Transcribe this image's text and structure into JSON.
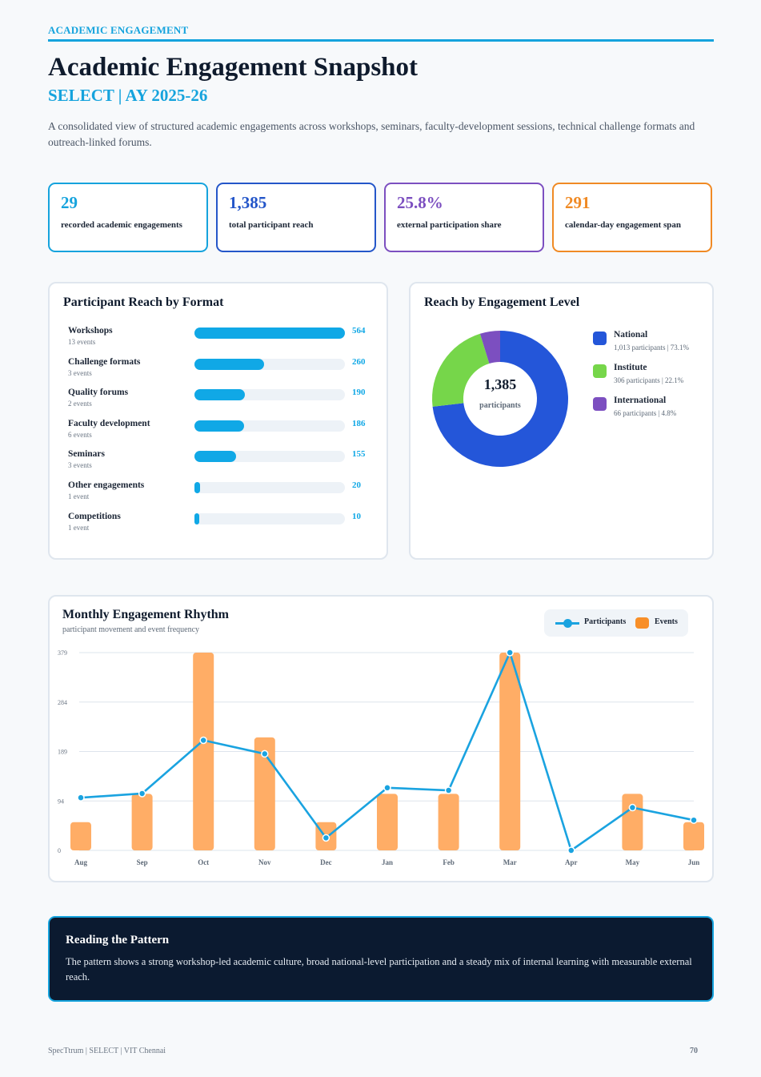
{
  "header": {
    "kicker": "ACADEMIC ENGAGEMENT",
    "title": "Academic Engagement Snapshot",
    "subtitle": "SELECT | AY 2025-26",
    "intro": "A consolidated view of structured academic engagements across workshops, seminars, faculty-development sessions, technical challenge formats and outreach-linked forums."
  },
  "kpis": [
    {
      "value": "29",
      "label": "recorded academic engagements",
      "color": "#15a3dd"
    },
    {
      "value": "1,385",
      "label": "total participant reach",
      "color": "#2456c9"
    },
    {
      "value": "25.8%",
      "label": "external participation share",
      "color": "#7c4fc0"
    },
    {
      "value": "291",
      "label": "calendar-day engagement span",
      "color": "#f08a24"
    }
  ],
  "format_card": {
    "title": "Participant Reach by Format",
    "rows": [
      {
        "name": "Workshops",
        "count": "13 events",
        "value": "564"
      },
      {
        "name": "Challenge formats",
        "count": "3 events",
        "value": "260"
      },
      {
        "name": "Quality forums",
        "count": "2 events",
        "value": "190"
      },
      {
        "name": "Faculty development",
        "count": "6 events",
        "value": "186"
      },
      {
        "name": "Seminars",
        "count": "3 events",
        "value": "155"
      },
      {
        "name": "Other engagements",
        "count": "1 event",
        "value": "20"
      },
      {
        "name": "Competitions",
        "count": "1 event",
        "value": "10"
      }
    ]
  },
  "level_card": {
    "title": "Reach by Engagement Level",
    "center_value": "1,385",
    "center_label": "participants",
    "items": [
      {
        "name": "National",
        "detail": "1,013 participants | 73.1%",
        "value": 1013,
        "color": "#2456d9"
      },
      {
        "name": "Institute",
        "detail": "306 participants | 22.1%",
        "value": 306,
        "color": "#76d64a"
      },
      {
        "name": "International",
        "detail": "66 participants | 4.8%",
        "value": 66,
        "color": "#7c4fc0"
      }
    ]
  },
  "rhythm_card": {
    "title": "Monthly Engagement Rhythm",
    "subtitle": "participant movement and event frequency",
    "legend_participants": "Participants",
    "legend_events": "Events",
    "participants_color": "#1aa3e0",
    "events_color": "#f88f28"
  },
  "chart_data": {
    "type": "bar",
    "categories": [
      "Aug",
      "Sep",
      "Oct",
      "Nov",
      "Dec",
      "Jan",
      "Feb",
      "Mar",
      "Apr",
      "May",
      "Jun"
    ],
    "series": [
      {
        "name": "Participants",
        "type": "line",
        "values": [
          101,
          109,
          211,
          185,
          24,
          120,
          115,
          379,
          0,
          82,
          58
        ]
      },
      {
        "name": "Events",
        "type": "bar",
        "values": [
          1,
          2,
          7,
          4,
          1,
          2,
          2,
          7,
          0,
          2,
          1
        ]
      }
    ],
    "yticks": [
      "0",
      "94",
      "189",
      "284",
      "379"
    ],
    "ylim": [
      0,
      379
    ],
    "grid": true,
    "legend": "top-right"
  },
  "insight": {
    "title": "Reading the Pattern",
    "text": "The pattern shows a strong workshop-led academic culture, broad national-level participation and a steady mix of internal learning with measurable external reach."
  },
  "footer": {
    "left": "SpecTtrum | SELECT | VIT Chennai",
    "page": "70"
  }
}
